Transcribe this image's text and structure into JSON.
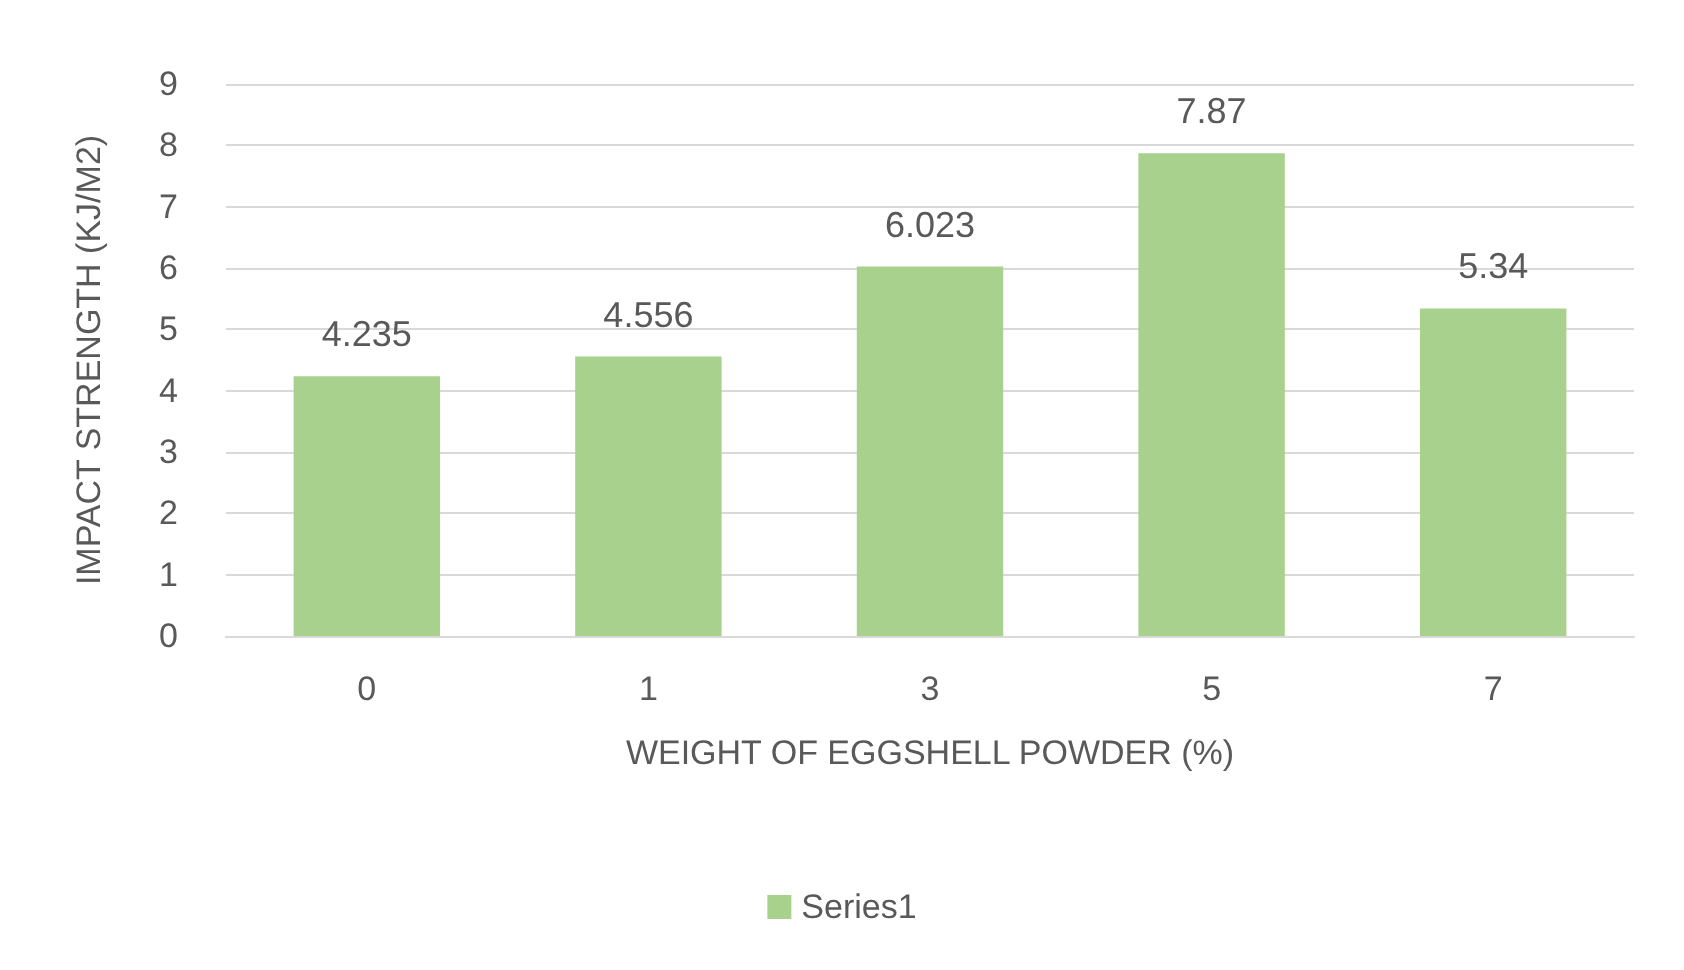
{
  "chart_data": {
    "type": "bar",
    "xlabel": "WEIGHT OF EGGSHELL POWDER (%)",
    "ylabel": "IMPACT STRENGTH (KJ/M2)",
    "categories": [
      "0",
      "1",
      "3",
      "5",
      "7"
    ],
    "series": [
      {
        "name": "Series1",
        "color": "#a9d18e",
        "values": [
          4.235,
          4.556,
          6.023,
          7.87,
          5.34
        ]
      }
    ],
    "ylim": [
      0,
      9
    ],
    "yticks": [
      0,
      1,
      2,
      3,
      4,
      5,
      6,
      7,
      8,
      9
    ],
    "grid": "y",
    "legend": "bottom",
    "data_labels": true
  }
}
